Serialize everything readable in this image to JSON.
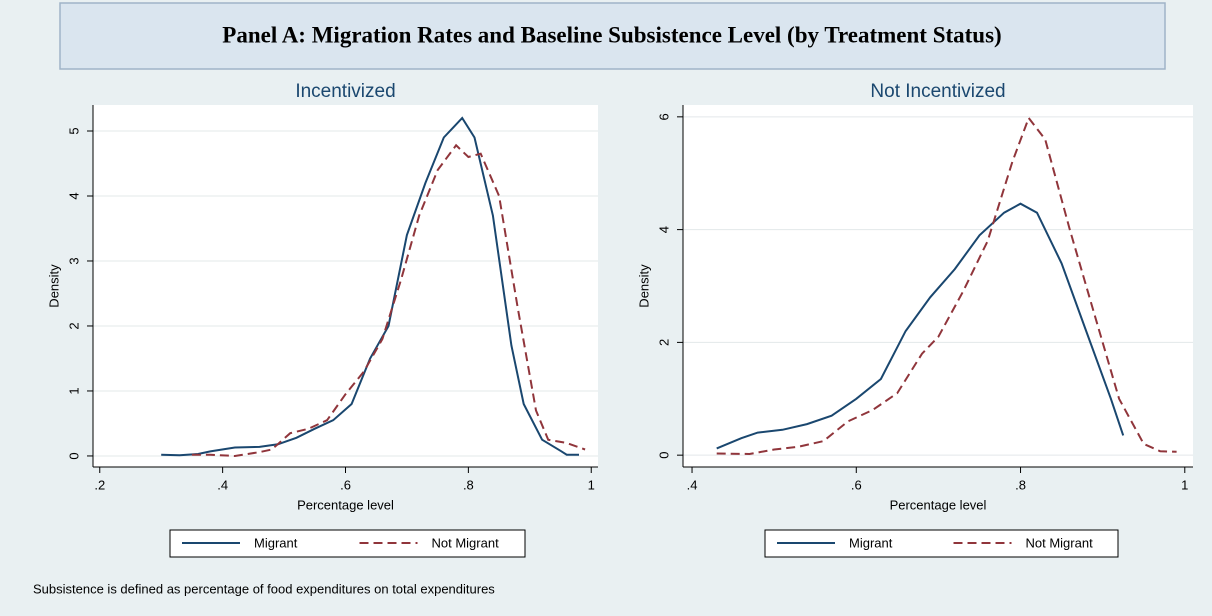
{
  "title": "Panel A: Migration Rates and Baseline Subsistence Level (by Treatment Status)",
  "note": "Subsistence is defined as percentage of food expenditures on total expenditures",
  "chart_data": [
    {
      "type": "line",
      "title": "Incentivized",
      "xlabel": "Percentage level",
      "ylabel": "Density",
      "xlim": [
        0.189,
        1.011
      ],
      "ylim": [
        -0.17,
        5.4
      ],
      "xticks": [
        {
          "value": 0.2,
          "label": ".2"
        },
        {
          "value": 0.4,
          "label": ".4"
        },
        {
          "value": 0.6,
          "label": ".6"
        },
        {
          "value": 0.8,
          "label": ".8"
        },
        1
      ],
      "yticks": [
        0,
        1,
        2,
        3,
        4,
        5
      ],
      "grid": true,
      "series": [
        {
          "name": "Migrant",
          "color": "#1a476f",
          "style": "solid",
          "x": [
            0.3,
            0.33,
            0.36,
            0.38,
            0.42,
            0.46,
            0.49,
            0.52,
            0.55,
            0.58,
            0.61,
            0.64,
            0.67,
            0.7,
            0.73,
            0.76,
            0.79,
            0.81,
            0.84,
            0.87,
            0.89,
            0.92,
            0.95,
            0.96,
            0.98
          ],
          "values": [
            0.02,
            0.01,
            0.03,
            0.07,
            0.13,
            0.14,
            0.18,
            0.28,
            0.42,
            0.55,
            0.8,
            1.5,
            2.0,
            3.4,
            4.2,
            4.9,
            5.2,
            4.9,
            3.7,
            1.7,
            0.8,
            0.25,
            0.08,
            0.02,
            0.02
          ]
        },
        {
          "name": "Not Migrant",
          "color": "#90353b",
          "style": "dashed",
          "x": [
            0.35,
            0.38,
            0.42,
            0.46,
            0.48,
            0.51,
            0.54,
            0.57,
            0.6,
            0.63,
            0.66,
            0.69,
            0.72,
            0.75,
            0.78,
            0.8,
            0.82,
            0.85,
            0.88,
            0.91,
            0.93,
            0.96,
            0.99
          ],
          "values": [
            0.02,
            0.02,
            0.0,
            0.06,
            0.1,
            0.35,
            0.42,
            0.55,
            0.95,
            1.3,
            1.8,
            2.7,
            3.7,
            4.4,
            4.78,
            4.6,
            4.65,
            4.0,
            2.3,
            0.7,
            0.25,
            0.2,
            0.1
          ]
        }
      ]
    },
    {
      "type": "line",
      "title": "Not Incentivized",
      "xlabel": "Percentage level",
      "ylabel": "Density",
      "xlim": [
        0.389,
        1.01
      ],
      "ylim": [
        -0.21,
        6.21
      ],
      "xticks": [
        {
          "value": 0.4,
          "label": ".4"
        },
        {
          "value": 0.6,
          "label": ".6"
        },
        {
          "value": 0.8,
          "label": ".8"
        },
        1
      ],
      "yticks": [
        0,
        2,
        4,
        6
      ],
      "grid": true,
      "series": [
        {
          "name": "Migrant",
          "color": "#1a476f",
          "style": "solid",
          "x": [
            0.43,
            0.46,
            0.48,
            0.51,
            0.54,
            0.57,
            0.6,
            0.63,
            0.66,
            0.69,
            0.72,
            0.75,
            0.78,
            0.8,
            0.82,
            0.85,
            0.88,
            0.91,
            0.925
          ],
          "values": [
            0.12,
            0.3,
            0.4,
            0.45,
            0.55,
            0.7,
            1.0,
            1.35,
            2.2,
            2.8,
            3.3,
            3.9,
            4.3,
            4.46,
            4.3,
            3.4,
            2.2,
            1.0,
            0.35
          ]
        },
        {
          "name": "Not Migrant",
          "color": "#90353b",
          "style": "dashed",
          "x": [
            0.43,
            0.47,
            0.5,
            0.53,
            0.56,
            0.59,
            0.62,
            0.65,
            0.68,
            0.7,
            0.73,
            0.76,
            0.79,
            0.81,
            0.83,
            0.86,
            0.89,
            0.92,
            0.95,
            0.97,
            0.99
          ],
          "values": [
            0.03,
            0.02,
            0.1,
            0.15,
            0.25,
            0.6,
            0.8,
            1.1,
            1.8,
            2.1,
            2.9,
            3.8,
            5.2,
            5.98,
            5.6,
            4.0,
            2.5,
            1.0,
            0.2,
            0.07,
            0.06
          ]
        }
      ]
    }
  ]
}
